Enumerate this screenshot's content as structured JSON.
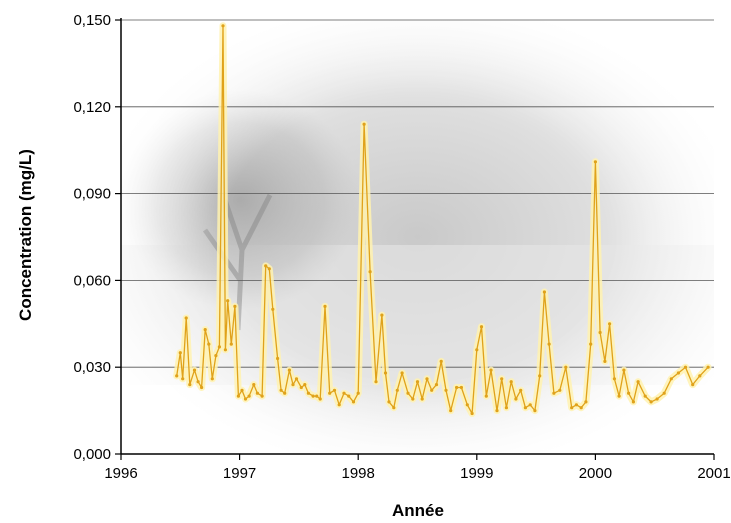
{
  "chart_data": {
    "type": "line",
    "title": "",
    "xlabel": "Année",
    "ylabel": "Concentration (mg/L)",
    "xlim": [
      1996,
      2001
    ],
    "ylim": [
      0,
      0.15
    ],
    "x_ticks": [
      {
        "value": 1996,
        "label": "1996"
      },
      {
        "value": 1997,
        "label": "1997"
      },
      {
        "value": 1998,
        "label": "1998"
      },
      {
        "value": 1999,
        "label": "1999"
      },
      {
        "value": 2000,
        "label": "2000"
      },
      {
        "value": 2001,
        "label": "2001"
      }
    ],
    "y_ticks": [
      {
        "value": 0,
        "label": "0,000"
      },
      {
        "value": 0.03,
        "label": "0,030"
      },
      {
        "value": 0.06,
        "label": "0,060"
      },
      {
        "value": 0.09,
        "label": "0,090"
      },
      {
        "value": 0.12,
        "label": "0,120"
      },
      {
        "value": 0.15,
        "label": "0,150"
      }
    ],
    "grid": "horizontal",
    "legend": "none",
    "colors": {
      "line": "#e0a21a",
      "glow": "#fff2b0",
      "grid": "#555555",
      "axis": "#000000"
    },
    "series": [
      {
        "x": [
          1996.47,
          1996.5,
          1996.52,
          1996.55,
          1996.58,
          1996.62,
          1996.65,
          1996.68,
          1996.71,
          1996.74,
          1996.77,
          1996.8,
          1996.83,
          1996.86,
          1996.88,
          1996.9,
          1996.93,
          1996.96,
          1996.99,
          1997.02,
          1997.05,
          1997.08,
          1997.12,
          1997.15,
          1997.19,
          1997.22,
          1997.25,
          1997.28,
          1997.32,
          1997.35,
          1997.38,
          1997.42,
          1997.45,
          1997.48,
          1997.52,
          1997.55,
          1997.58,
          1997.62,
          1997.65,
          1997.68,
          1997.72,
          1997.76,
          1997.8,
          1997.84,
          1997.88,
          1997.92,
          1997.96,
          1998.0,
          1998.05,
          1998.1,
          1998.15,
          1998.2,
          1998.23,
          1998.26,
          1998.3,
          1998.33,
          1998.37,
          1998.42,
          1998.46,
          1998.5,
          1998.54,
          1998.58,
          1998.62,
          1998.66,
          1998.7,
          1998.74,
          1998.78,
          1998.83,
          1998.87,
          1998.92,
          1998.96,
          1999.0,
          1999.04,
          1999.08,
          1999.12,
          1999.17,
          1999.21,
          1999.25,
          1999.29,
          1999.33,
          1999.37,
          1999.41,
          1999.45,
          1999.49,
          1999.53,
          1999.57,
          1999.61,
          1999.65,
          1999.7,
          1999.75,
          1999.8,
          1999.84,
          1999.88,
          1999.92,
          1999.96,
          2000.0,
          2000.04,
          2000.08,
          2000.12,
          2000.16,
          2000.2,
          2000.24,
          2000.28,
          2000.32,
          2000.36,
          2000.42,
          2000.47,
          2000.52,
          2000.58,
          2000.64,
          2000.7,
          2000.76,
          2000.82,
          2000.88,
          2000.95
        ],
        "y": [
          0.027,
          0.035,
          0.026,
          0.047,
          0.024,
          0.029,
          0.025,
          0.023,
          0.043,
          0.038,
          0.026,
          0.034,
          0.037,
          0.148,
          0.036,
          0.053,
          0.038,
          0.051,
          0.02,
          0.022,
          0.019,
          0.02,
          0.024,
          0.021,
          0.02,
          0.065,
          0.064,
          0.05,
          0.033,
          0.022,
          0.021,
          0.029,
          0.024,
          0.026,
          0.023,
          0.024,
          0.021,
          0.02,
          0.02,
          0.019,
          0.051,
          0.021,
          0.022,
          0.017,
          0.021,
          0.02,
          0.018,
          0.021,
          0.114,
          0.063,
          0.025,
          0.048,
          0.028,
          0.018,
          0.016,
          0.022,
          0.028,
          0.021,
          0.019,
          0.025,
          0.019,
          0.026,
          0.022,
          0.024,
          0.032,
          0.022,
          0.015,
          0.023,
          0.023,
          0.017,
          0.014,
          0.036,
          0.044,
          0.02,
          0.029,
          0.015,
          0.026,
          0.016,
          0.025,
          0.019,
          0.022,
          0.016,
          0.017,
          0.015,
          0.027,
          0.056,
          0.038,
          0.021,
          0.022,
          0.03,
          0.016,
          0.017,
          0.016,
          0.018,
          0.038,
          0.101,
          0.042,
          0.032,
          0.045,
          0.026,
          0.02,
          0.029,
          0.021,
          0.018,
          0.025,
          0.02,
          0.018,
          0.019,
          0.021,
          0.026,
          0.028,
          0.03,
          0.024,
          0.027,
          0.03
        ]
      }
    ]
  }
}
